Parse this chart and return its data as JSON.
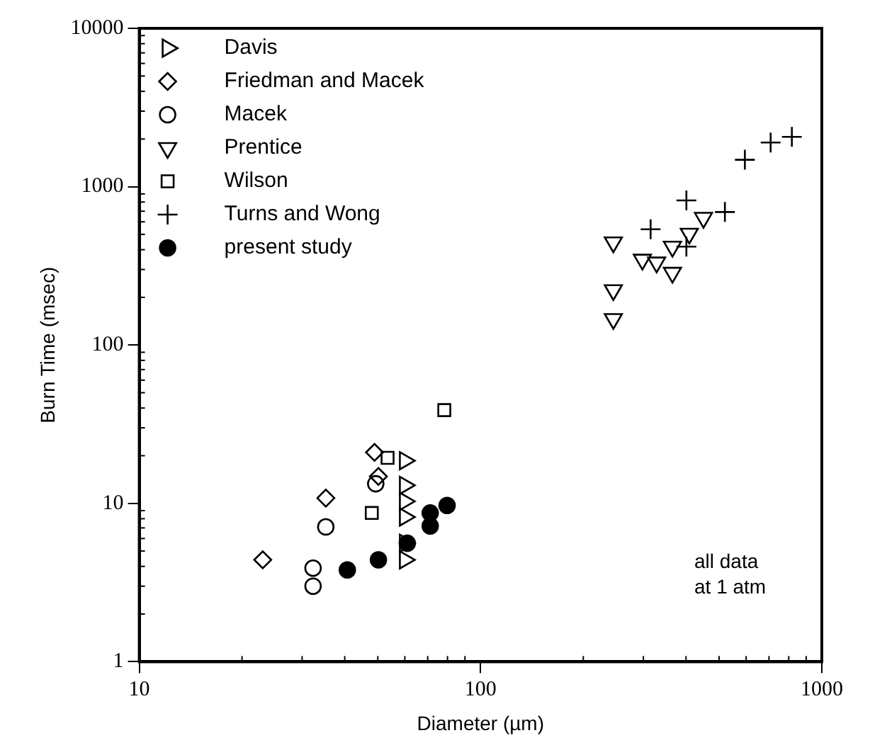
{
  "chart_data": {
    "type": "scatter",
    "xlabel": "Diameter (µm)",
    "ylabel": "Burn Time (msec)",
    "log": "xy",
    "xlim": [
      10,
      1000
    ],
    "xticks": [
      10,
      100,
      1000
    ],
    "ylim": [
      1,
      10000
    ],
    "yticks": [
      1,
      10,
      100,
      1000,
      10000
    ],
    "grid": false,
    "legend": "top left",
    "annotations": [
      "all data\nat 1 atm"
    ],
    "series": [
      {
        "name": "Davis",
        "color": "#000000",
        "marker": "triangle",
        "x": [
          60,
          60,
          60,
          60,
          60,
          60
        ],
        "values": [
          18.6,
          13,
          10.3,
          8.2,
          5.6,
          4.4
        ]
      },
      {
        "name": "Friedman and Macek",
        "color": "#000000",
        "marker": "diamond",
        "x": [
          23,
          35.2,
          48.9,
          50.2
        ],
        "values": [
          4.4,
          10.8,
          21,
          14.8
        ]
      },
      {
        "name": "Macek",
        "color": "#000000",
        "marker": "circle",
        "x": [
          35.2,
          32.3,
          32.3,
          49.3
        ],
        "values": [
          7.1,
          3.9,
          3,
          13.3
        ]
      },
      {
        "name": "Prentice",
        "color": "#000000",
        "marker": "triangle",
        "x": [
          245,
          245,
          245,
          298,
          328,
          365,
          365,
          409,
          450
        ],
        "values": [
          445,
          222,
          146,
          346,
          332,
          286,
          418,
          505,
          636
        ]
      },
      {
        "name": "Wilson",
        "color": "#000000",
        "marker": "square",
        "x": [
          78.3,
          48,
          53.4
        ],
        "values": [
          38.8,
          8.7,
          19.4
        ]
      },
      {
        "name": "Turns and Wong",
        "color": "#000000",
        "marker": "cross",
        "x": [
          315,
          401,
          401,
          520,
          595,
          708,
          817
        ],
        "values": [
          538,
          819,
          418,
          692,
          1479,
          1901,
          2064
        ]
      },
      {
        "name": "present study",
        "color": "#000000",
        "marker": "circle",
        "x": [
          40.7,
          50.2,
          61,
          71.2,
          71.2,
          79.8
        ],
        "values": [
          3.8,
          4.4,
          5.6,
          7.2,
          8.7,
          9.7
        ]
      }
    ]
  }
}
